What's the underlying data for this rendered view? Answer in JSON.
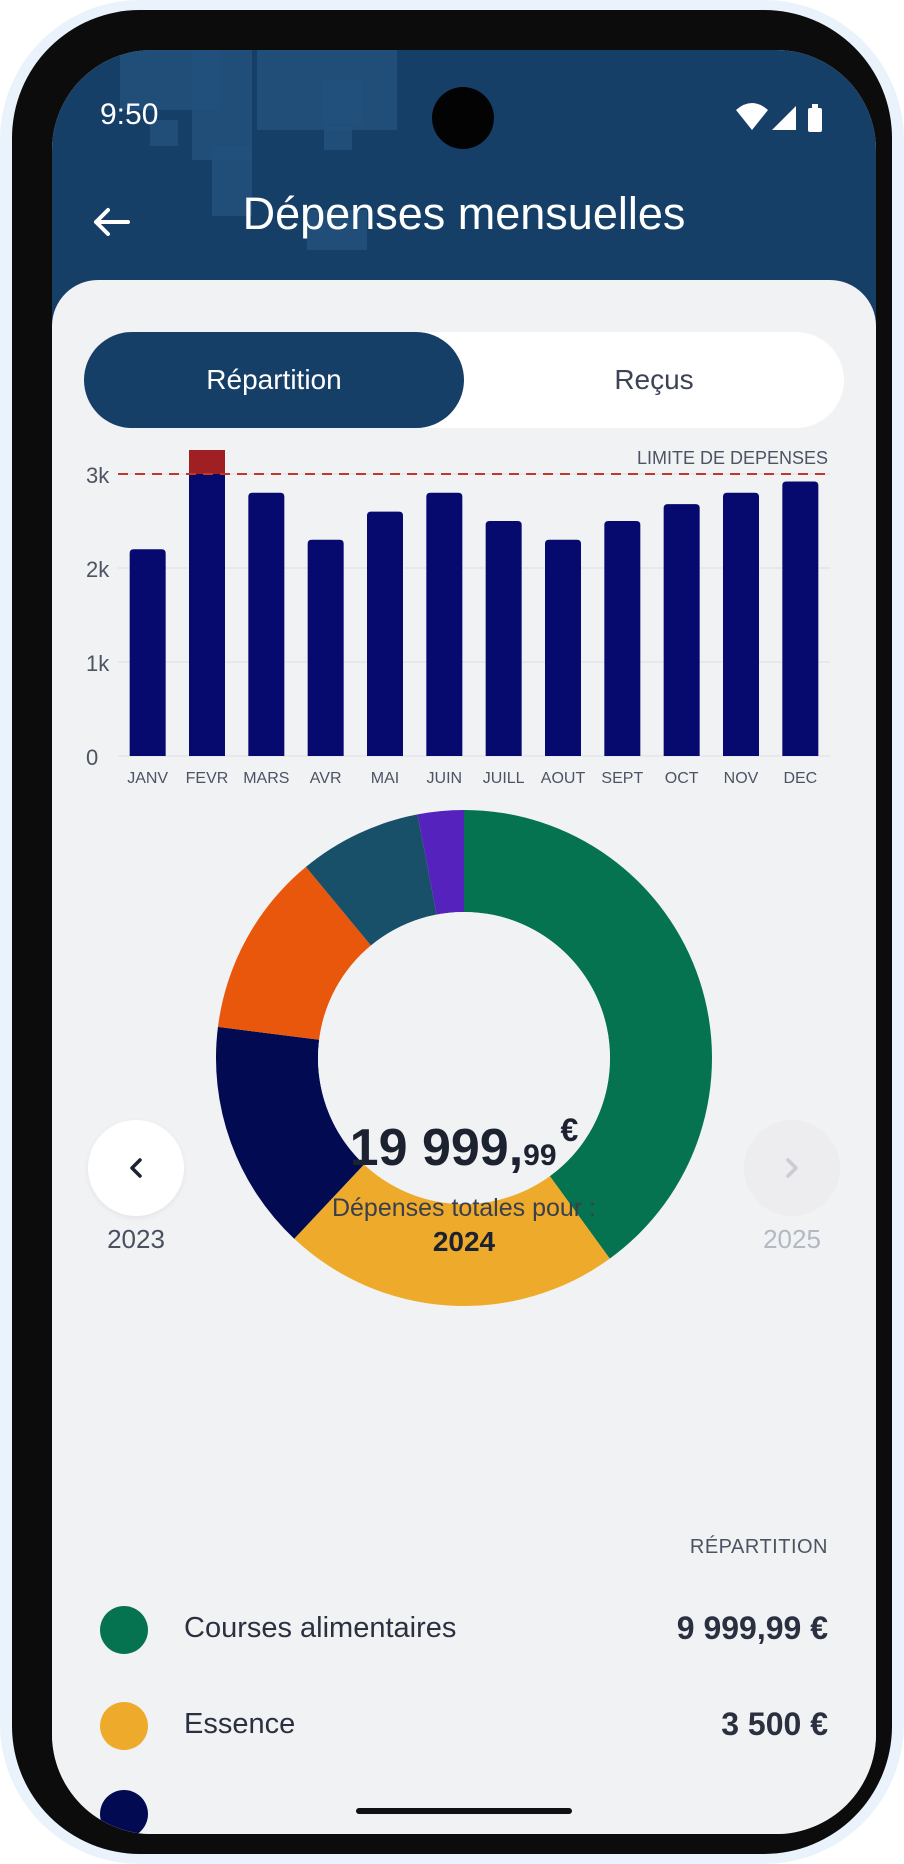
{
  "status_bar": {
    "time": "9:50"
  },
  "header": {
    "title": "Dépenses mensuelles"
  },
  "tabs": [
    {
      "label": "Répartition",
      "active": true
    },
    {
      "label": "Reçus",
      "active": false
    }
  ],
  "colors": {
    "primary": "#163f67",
    "bar": "#060a6e",
    "over_limit": "#a01f22",
    "limit_line": "#c0392b"
  },
  "chart_data": {
    "type": "bar",
    "categories": [
      "JANV",
      "FEVR",
      "MARS",
      "AVR",
      "MAI",
      "JUIN",
      "JUILL",
      "AOUT",
      "SEPT",
      "OCT",
      "NOV",
      "DEC"
    ],
    "values": [
      2200,
      3500,
      2800,
      2300,
      2600,
      2800,
      2500,
      2300,
      2500,
      2680,
      2800,
      2920
    ],
    "ylim": [
      0,
      3000
    ],
    "yticks": [
      0,
      1000,
      2000,
      3000
    ],
    "ytick_labels": [
      "0",
      "1k",
      "2k",
      "3k"
    ],
    "limit": 3000,
    "limit_label": "LIMITE DE DÉPENSES",
    "grid": true
  },
  "donut_data": {
    "type": "pie",
    "slices": [
      {
        "value": 40,
        "color": "#05734f"
      },
      {
        "value": 22,
        "color": "#eeaa2b"
      },
      {
        "value": 15,
        "color": "#020a52"
      },
      {
        "value": 12,
        "color": "#e9570c"
      },
      {
        "value": 8,
        "color": "#184f69"
      },
      {
        "value": 3,
        "color": "#5522be"
      }
    ]
  },
  "summary": {
    "amount_int": "19 999,",
    "amount_dec": "99",
    "currency": "€",
    "caption": "Dépenses totales pour :",
    "year": "2024",
    "prev_year": "2023",
    "next_year": "2025"
  },
  "breakdown": {
    "heading": "RÉPARTITION",
    "items": [
      {
        "label": "Courses alimentaires",
        "value": "9 999,99 €",
        "color": "#05734f"
      },
      {
        "label": "Essence",
        "value": "3 500 €",
        "color": "#eeaa2b"
      }
    ]
  }
}
